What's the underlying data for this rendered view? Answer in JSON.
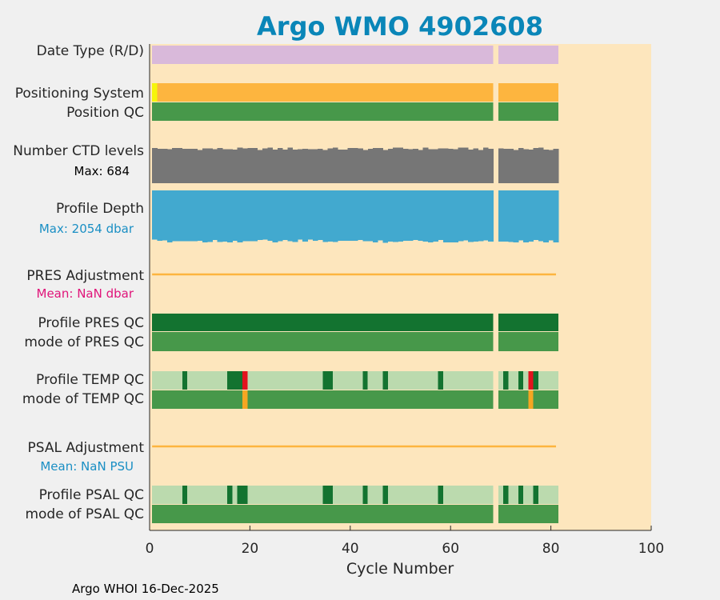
{
  "chart_data": {
    "type": "heatmap",
    "title": "Argo WMO 4902608",
    "xlabel": "Cycle Number",
    "xlim": [
      0,
      100
    ],
    "xticks": [
      0,
      20,
      40,
      60,
      80,
      100
    ],
    "last_cycle": 81,
    "gap_cycles": [
      69
    ],
    "footer": "Argo WHOI 16-Dec-2025",
    "colors": {
      "background": "#fde6bd",
      "title": "#0a86b8",
      "date_type": "#d9b9da",
      "positioning": "#fdb53f",
      "positioning_first": "#f6f50a",
      "qc_good": "#47984a",
      "qc_dark": "#137330",
      "qc_light": "#bbdaae",
      "qc_red": "#e3131e",
      "qc_orange": "#f6a622",
      "ctd": "#767676",
      "depth": "#42a9cf",
      "adjustment_line": "#fdb53f",
      "pres_mean": "#e0157a",
      "psal_mean": "#1a8fc4"
    },
    "rows": {
      "date_type": {
        "label": "Date Type (R/D)"
      },
      "positioning": {
        "label": "Positioning System",
        "special_cycles": [
          1
        ]
      },
      "position_qc": {
        "label": "Position QC"
      },
      "ctd_levels": {
        "label": "Number CTD levels",
        "max_label": "Max: 684",
        "max": 684
      },
      "profile_depth": {
        "label": "Profile Depth",
        "max_label": "Max: 2054 dbar",
        "max": 2054
      },
      "pres_adjustment": {
        "label": "PRES Adjustment",
        "mean_label": "Mean:  NaN dbar"
      },
      "profile_pres_qc": {
        "label": "Profile PRES QC"
      },
      "mode_pres_qc": {
        "label": "mode of PRES QC"
      },
      "profile_temp_qc": {
        "label": "Profile TEMP QC",
        "dark_cycles": [
          7,
          16,
          17,
          18,
          35,
          36,
          43,
          47,
          58,
          71,
          74,
          77
        ],
        "red_cycles": [
          19,
          76
        ]
      },
      "mode_temp_qc": {
        "label": "mode of TEMP QC",
        "orange_cycles": [
          19,
          76
        ]
      },
      "psal_adjustment": {
        "label": "PSAL Adjustment",
        "mean_label": "Mean:  NaN PSU"
      },
      "profile_psal_qc": {
        "label": "Profile PSAL QC",
        "dark_cycles": [
          7,
          16,
          18,
          19,
          35,
          36,
          43,
          47,
          58,
          71,
          74,
          77
        ]
      },
      "mode_psal_qc": {
        "label": "mode of PSAL QC"
      }
    }
  }
}
